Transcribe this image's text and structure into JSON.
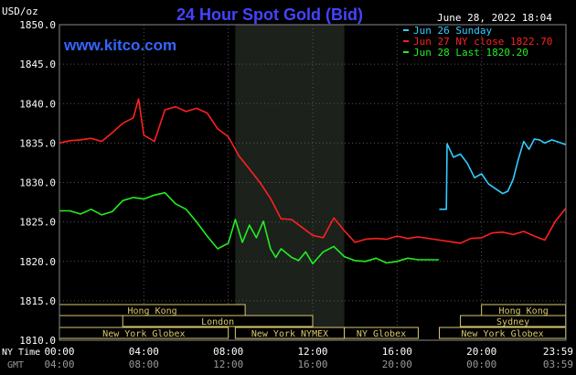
{
  "chart_data": {
    "type": "line",
    "title": "24 Hour Spot Gold (Bid)",
    "site": "www.kitco.com",
    "timestamp": "June 28, 2022 18:04",
    "ylabel": "USD/oz",
    "ylim": [
      1810,
      1850
    ],
    "y_ticks": [
      "1850.0",
      "1845.0",
      "1840.0",
      "1835.0",
      "1830.0",
      "1825.0",
      "1820.0",
      "1815.0",
      "1810.0"
    ],
    "x_row1_label": "NY Time",
    "x_row2_label": "GMT",
    "x_ticks_ny": [
      "00:00",
      "04:00",
      "08:00",
      "12:00",
      "16:00",
      "20:00",
      "23:59"
    ],
    "x_ticks_gmt": [
      "04:00",
      "08:00",
      "12:00",
      "16:00",
      "20:00",
      "00:00",
      "03:59"
    ],
    "colors": {
      "jun26": "#33ccff",
      "jun27": "#ff2020",
      "jun28": "#22ee22",
      "title": "#4444ff",
      "site": "#3366ff",
      "timestamp": "#ffffff",
      "shade": "#1c211c",
      "grid": "#555555"
    },
    "legend": [
      {
        "label": "Jun 26 Sunday",
        "color": "#33ccff"
      },
      {
        "label": "Jun 27 NY close 1822.70",
        "color": "#ff2020"
      },
      {
        "label": "Jun 28 Last 1820.20",
        "color": "#22ee22"
      }
    ],
    "sessions": [
      {
        "label": "Hong Kong",
        "start": "00:00",
        "end": "08:48",
        "row": 1
      },
      {
        "label": "London",
        "start": "03:00",
        "end": "12:00",
        "row": 2
      },
      {
        "label": "New York Globex",
        "start": "00:00",
        "end": "08:00",
        "row": 3
      },
      {
        "label": "New York NYMEX",
        "start": "08:20",
        "end": "13:30",
        "row": 3
      },
      {
        "label": "NY Globex",
        "start": "13:30",
        "end": "17:00",
        "row": 3
      },
      {
        "label": "Hong Kong",
        "start": "20:00",
        "end": "23:59",
        "row": 1
      },
      {
        "label": "Sydney",
        "start": "19:00",
        "end": "23:59",
        "row": 2
      },
      {
        "label": "New York Globex",
        "start": "18:00",
        "end": "23:59",
        "row": 3
      }
    ],
    "shaded_period": [
      "08:20",
      "13:30"
    ],
    "series": [
      {
        "name": "Jun 26 Sunday",
        "color": "#33ccff",
        "points": [
          [
            "18:00",
            1826.6
          ],
          [
            "18:20",
            1826.6
          ],
          [
            "18:22",
            1834.9
          ],
          [
            "18:40",
            1833.2
          ],
          [
            "19:00",
            1833.6
          ],
          [
            "19:20",
            1832.4
          ],
          [
            "19:40",
            1830.6
          ],
          [
            "20:00",
            1831.1
          ],
          [
            "20:20",
            1829.8
          ],
          [
            "20:40",
            1829.2
          ],
          [
            "21:00",
            1828.6
          ],
          [
            "21:15",
            1828.9
          ],
          [
            "21:30",
            1830.4
          ],
          [
            "21:45",
            1833.0
          ],
          [
            "22:00",
            1835.2
          ],
          [
            "22:15",
            1834.2
          ],
          [
            "22:30",
            1835.5
          ],
          [
            "22:45",
            1835.4
          ],
          [
            "23:00",
            1835.0
          ],
          [
            "23:20",
            1835.4
          ],
          [
            "23:40",
            1835.1
          ],
          [
            "23:59",
            1834.8
          ]
        ]
      },
      {
        "name": "Jun 27 NY close 1822.70",
        "color": "#ff2020",
        "points": [
          [
            "00:00",
            1835.0
          ],
          [
            "00:30",
            1835.3
          ],
          [
            "01:00",
            1835.4
          ],
          [
            "01:30",
            1835.6
          ],
          [
            "02:00",
            1835.2
          ],
          [
            "02:30",
            1836.3
          ],
          [
            "03:00",
            1837.5
          ],
          [
            "03:30",
            1838.2
          ],
          [
            "03:45",
            1840.6
          ],
          [
            "04:00",
            1836.0
          ],
          [
            "04:30",
            1835.2
          ],
          [
            "05:00",
            1839.2
          ],
          [
            "05:30",
            1839.6
          ],
          [
            "06:00",
            1839.0
          ],
          [
            "06:30",
            1839.4
          ],
          [
            "07:00",
            1838.8
          ],
          [
            "07:30",
            1836.8
          ],
          [
            "08:00",
            1835.8
          ],
          [
            "08:30",
            1833.4
          ],
          [
            "09:00",
            1831.7
          ],
          [
            "09:30",
            1830.0
          ],
          [
            "10:00",
            1828.0
          ],
          [
            "10:30",
            1825.4
          ],
          [
            "11:00",
            1825.3
          ],
          [
            "11:30",
            1824.3
          ],
          [
            "12:00",
            1823.3
          ],
          [
            "12:30",
            1823.0
          ],
          [
            "13:00",
            1825.5
          ],
          [
            "13:30",
            1823.9
          ],
          [
            "14:00",
            1822.4
          ],
          [
            "14:30",
            1822.8
          ],
          [
            "15:00",
            1822.9
          ],
          [
            "15:30",
            1822.8
          ],
          [
            "16:00",
            1823.2
          ],
          [
            "16:30",
            1822.9
          ],
          [
            "17:00",
            1823.1
          ],
          [
            "18:00",
            1822.7
          ],
          [
            "18:30",
            1822.5
          ],
          [
            "19:00",
            1822.3
          ],
          [
            "19:30",
            1822.9
          ],
          [
            "20:00",
            1823.0
          ],
          [
            "20:30",
            1823.6
          ],
          [
            "21:00",
            1823.7
          ],
          [
            "21:30",
            1823.4
          ],
          [
            "22:00",
            1823.8
          ],
          [
            "22:30",
            1823.2
          ],
          [
            "23:00",
            1822.7
          ],
          [
            "23:30",
            1825.1
          ],
          [
            "23:59",
            1826.7
          ]
        ]
      },
      {
        "name": "Jun 28 Last 1820.20",
        "color": "#22ee22",
        "points": [
          [
            "00:00",
            1826.4
          ],
          [
            "00:30",
            1826.4
          ],
          [
            "01:00",
            1826.0
          ],
          [
            "01:30",
            1826.6
          ],
          [
            "02:00",
            1825.9
          ],
          [
            "02:30",
            1826.3
          ],
          [
            "03:00",
            1827.7
          ],
          [
            "03:30",
            1828.1
          ],
          [
            "04:00",
            1827.9
          ],
          [
            "04:30",
            1828.4
          ],
          [
            "05:00",
            1828.7
          ],
          [
            "05:30",
            1827.3
          ],
          [
            "06:00",
            1826.6
          ],
          [
            "06:30",
            1825.0
          ],
          [
            "07:00",
            1823.2
          ],
          [
            "07:30",
            1821.6
          ],
          [
            "08:00",
            1822.3
          ],
          [
            "08:20",
            1825.3
          ],
          [
            "08:40",
            1822.4
          ],
          [
            "09:00",
            1824.6
          ],
          [
            "09:20",
            1823.0
          ],
          [
            "09:40",
            1825.1
          ],
          [
            "10:00",
            1821.6
          ],
          [
            "10:15",
            1820.5
          ],
          [
            "10:30",
            1821.6
          ],
          [
            "11:00",
            1820.5
          ],
          [
            "11:20",
            1820.1
          ],
          [
            "11:40",
            1821.2
          ],
          [
            "12:00",
            1819.7
          ],
          [
            "12:30",
            1821.2
          ],
          [
            "13:00",
            1821.9
          ],
          [
            "13:30",
            1820.6
          ],
          [
            "14:00",
            1820.1
          ],
          [
            "14:30",
            1820.0
          ],
          [
            "15:00",
            1820.4
          ],
          [
            "15:30",
            1819.8
          ],
          [
            "16:00",
            1820.0
          ],
          [
            "16:30",
            1820.4
          ],
          [
            "17:00",
            1820.2
          ],
          [
            "17:59",
            1820.2
          ]
        ]
      }
    ]
  }
}
